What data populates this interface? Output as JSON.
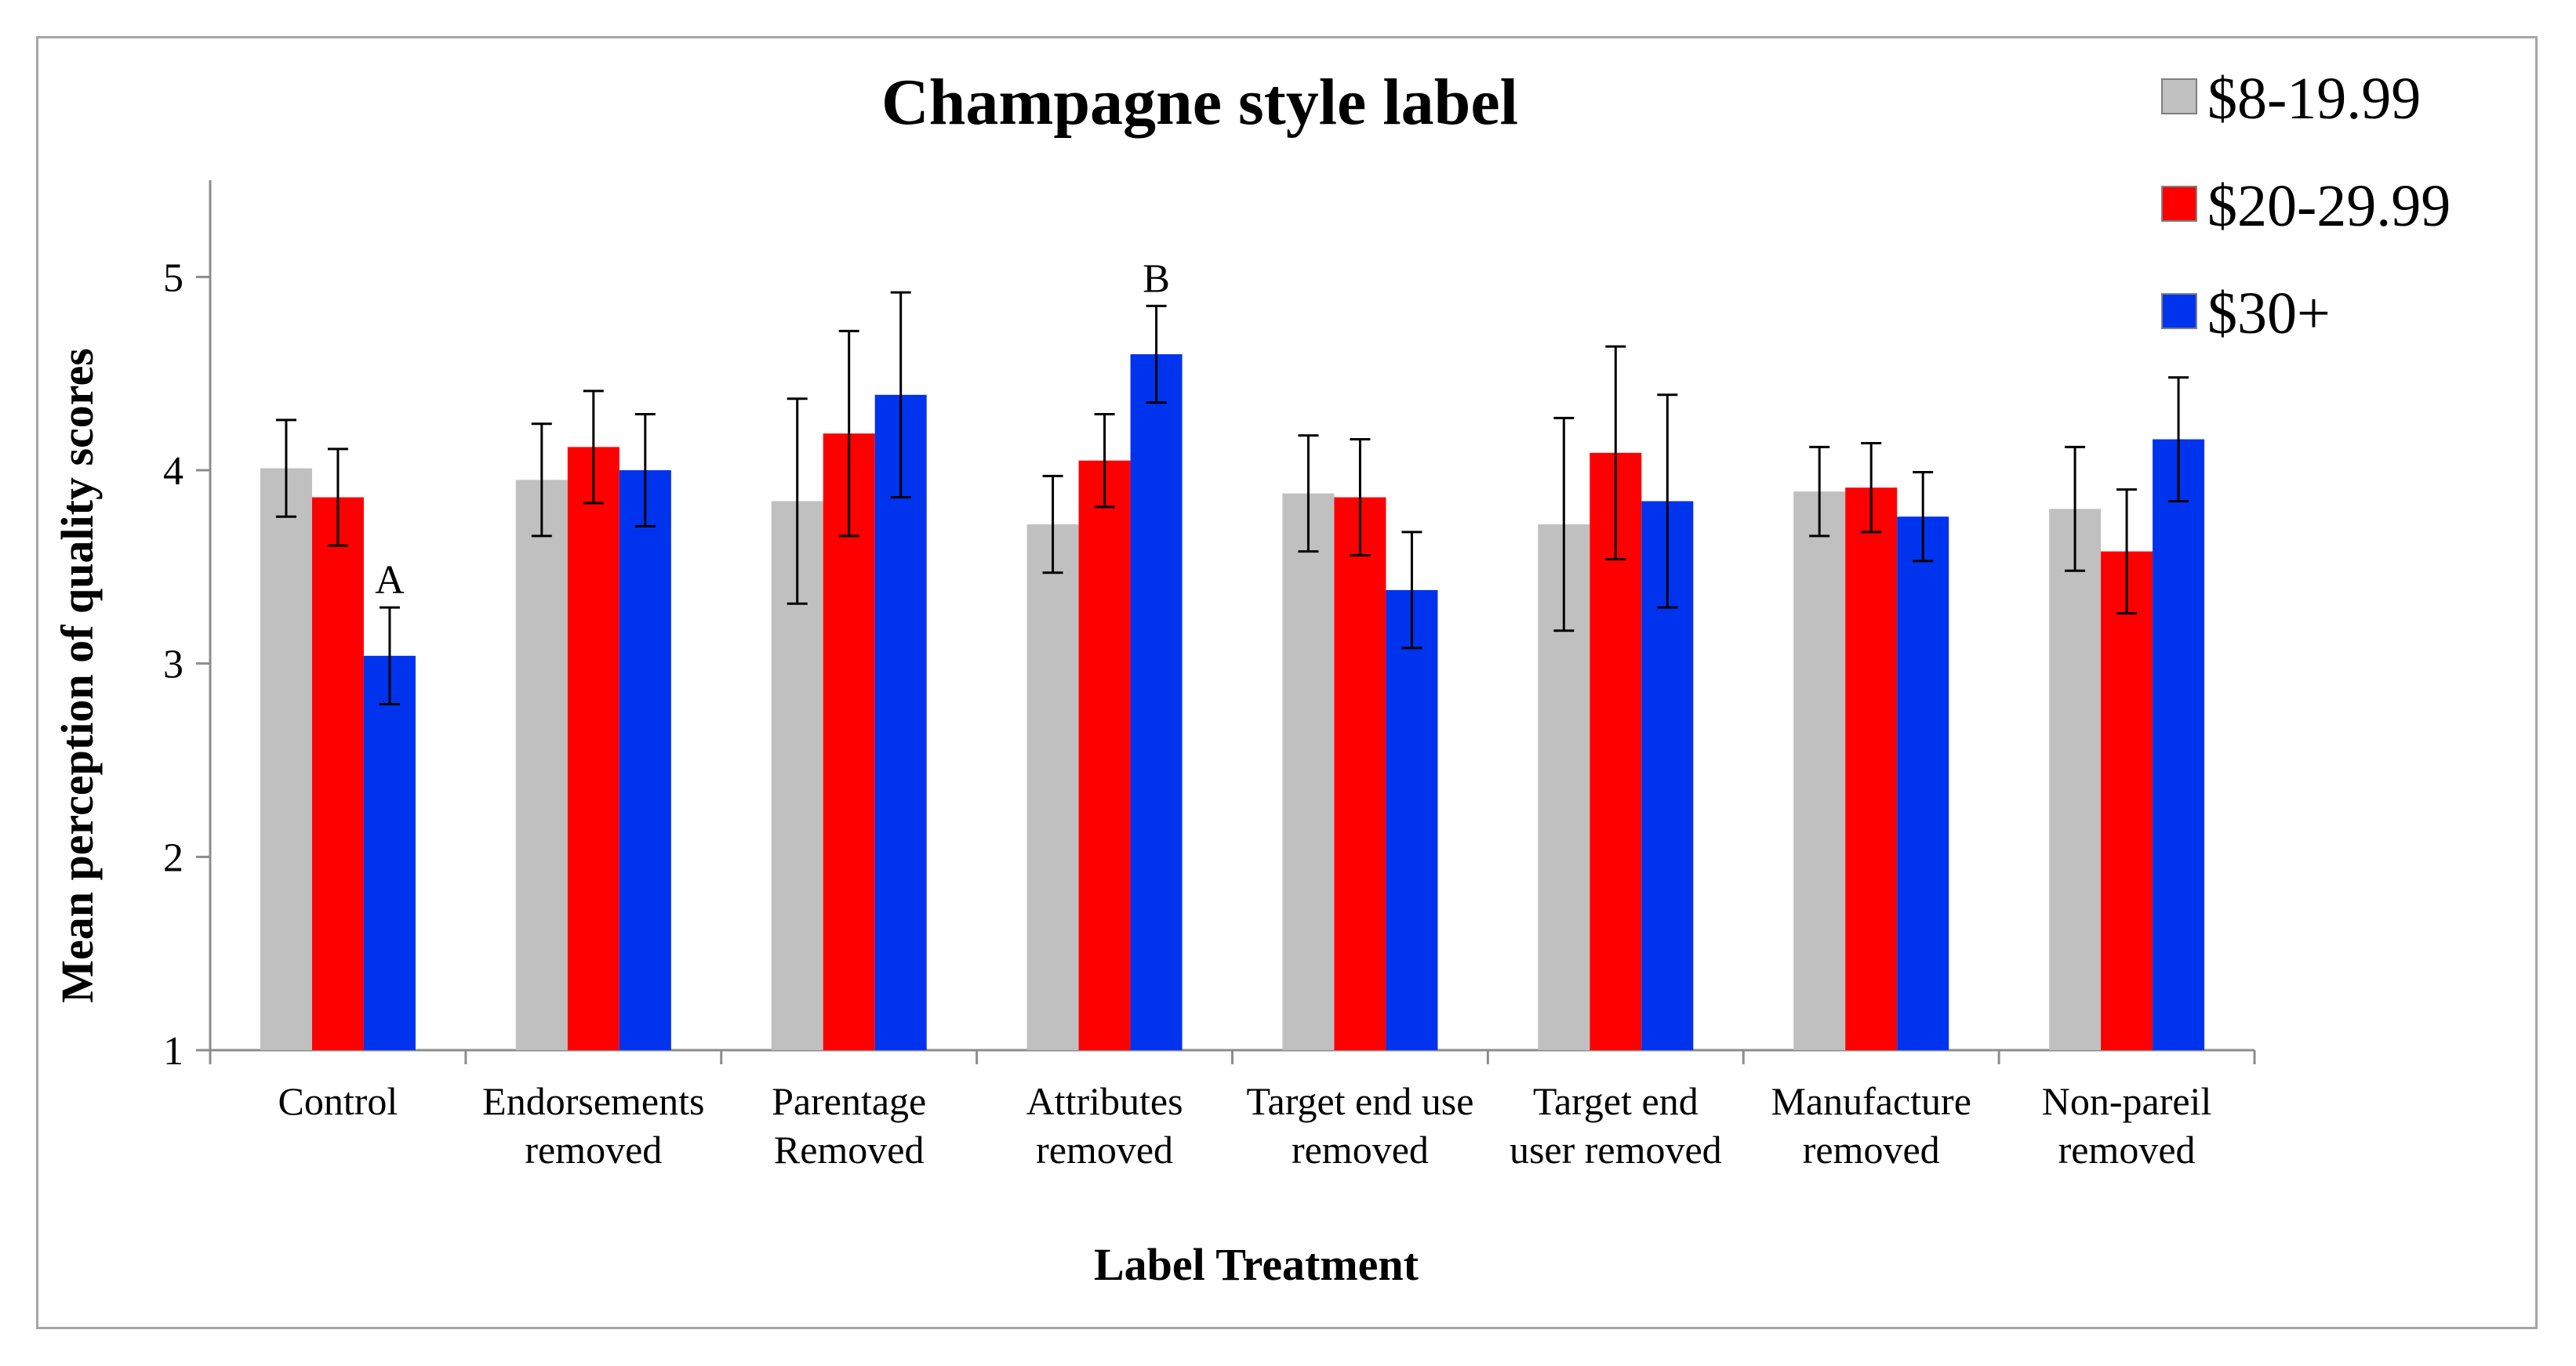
{
  "chart_data": {
    "type": "bar",
    "title": "Champagne style label",
    "xlabel": "Label Treatment",
    "ylabel": "Mean perception of quality scores",
    "ylim": [
      1,
      5.5
    ],
    "yticks": [
      1,
      2,
      3,
      4,
      5
    ],
    "grid": false,
    "legend_position": "top-right",
    "categories": [
      [
        "Control"
      ],
      [
        "Endorsements",
        "removed"
      ],
      [
        "Parentage",
        "Removed"
      ],
      [
        "Attributes",
        "removed"
      ],
      [
        "Target end use",
        "removed"
      ],
      [
        "Target end",
        "user removed"
      ],
      [
        "Manufacture",
        "removed"
      ],
      [
        "Non-pareil",
        "removed"
      ]
    ],
    "series": [
      {
        "name": "$8-19.99",
        "color": "#c0c0c0",
        "values": [
          4.01,
          3.95,
          3.84,
          3.72,
          3.88,
          3.72,
          3.89,
          3.8
        ],
        "error": [
          0.25,
          0.29,
          0.53,
          0.25,
          0.3,
          0.55,
          0.23,
          0.32
        ]
      },
      {
        "name": "$20-29.99",
        "color": "#ff0000",
        "values": [
          3.86,
          4.12,
          4.19,
          4.05,
          3.86,
          4.09,
          3.91,
          3.58
        ],
        "error": [
          0.25,
          0.29,
          0.53,
          0.24,
          0.3,
          0.55,
          0.23,
          0.32
        ]
      },
      {
        "name": "$30+",
        "color": "#0033ee",
        "values": [
          3.04,
          4.0,
          4.39,
          4.6,
          3.38,
          3.84,
          3.76,
          4.16
        ],
        "error": [
          0.25,
          0.29,
          0.53,
          0.25,
          0.3,
          0.55,
          0.23,
          0.32
        ]
      }
    ],
    "annotations": [
      {
        "text": "A",
        "category": 0,
        "series": 2
      },
      {
        "text": "B",
        "category": 3,
        "series": 2
      }
    ]
  }
}
